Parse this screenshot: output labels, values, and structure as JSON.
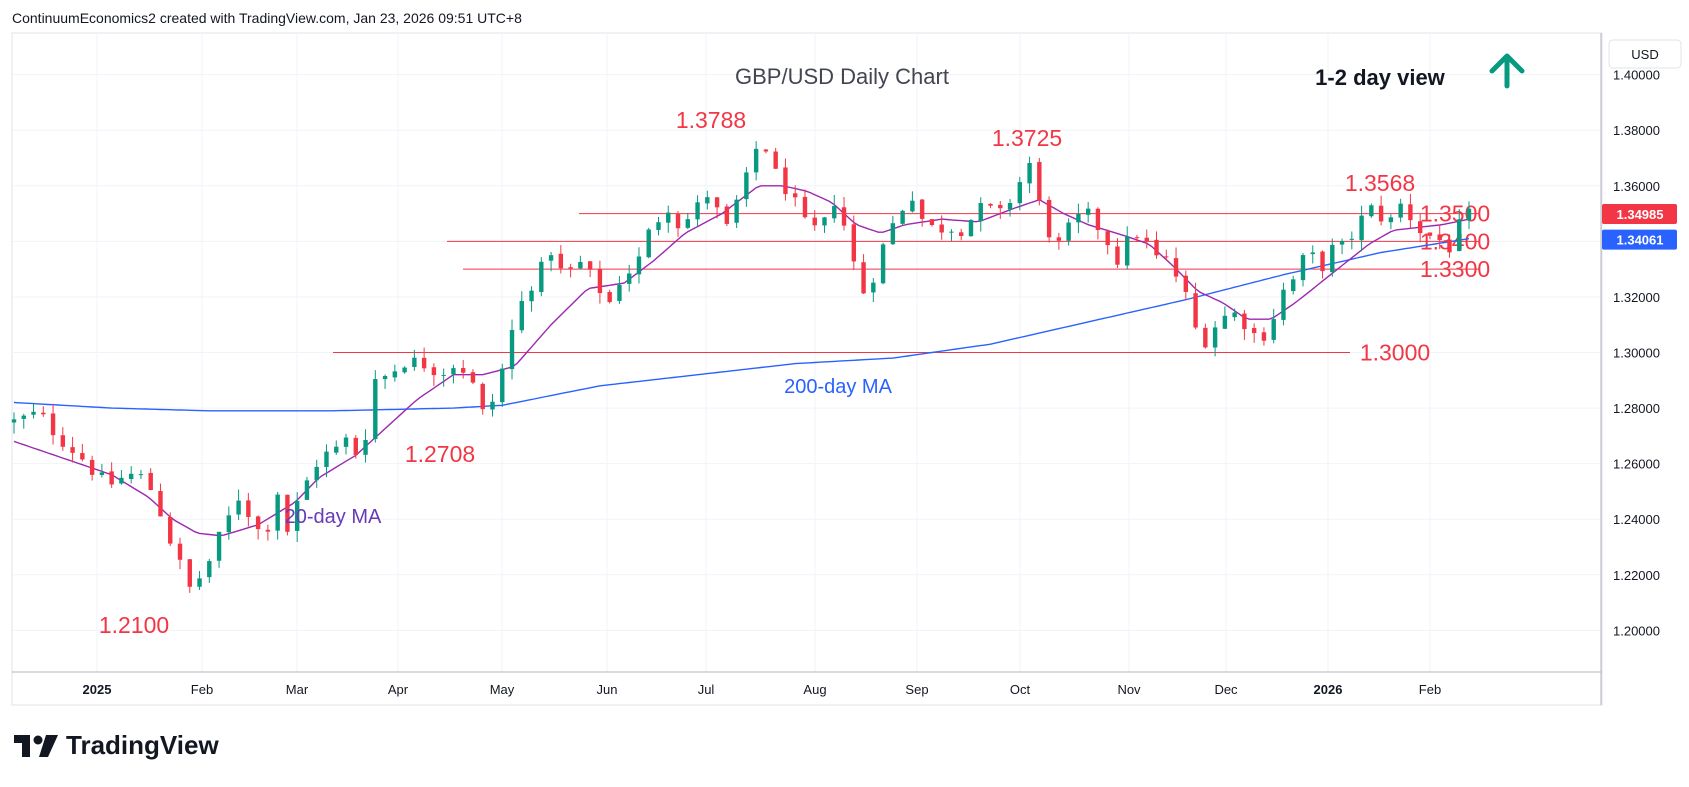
{
  "header": {
    "credit": "ContinuumEconomics2 created with TradingView.com, Jan 23, 2026 09:51 UTC+8"
  },
  "footer": {
    "brand": "TradingView"
  },
  "chart_data": {
    "type": "candlestick",
    "title": "GBP/USD Daily Chart",
    "view_label": "1-2 day view",
    "view_direction": "up",
    "currency": "USD",
    "ylim": [
      1.185,
      1.415
    ],
    "y_ticks": [
      "1.40000",
      "1.38000",
      "1.36000",
      "1.34000",
      "1.32000",
      "1.30000",
      "1.28000",
      "1.26000",
      "1.24000",
      "1.22000",
      "1.20000"
    ],
    "x_ticks": [
      "2025",
      "Feb",
      "Mar",
      "Apr",
      "May",
      "Jun",
      "Jul",
      "Aug",
      "Sep",
      "Oct",
      "Nov",
      "Dec",
      "2026",
      "Feb"
    ],
    "x_tick_bold": [
      true,
      false,
      false,
      false,
      false,
      false,
      false,
      false,
      false,
      false,
      false,
      false,
      true,
      false
    ],
    "price_tags": [
      {
        "label": "1.34985",
        "value": 1.34985,
        "color": "#f23645"
      },
      {
        "label": "1.34061",
        "value": 1.34061,
        "color": "#2962ff"
      }
    ],
    "levels": [
      {
        "label": "1.3500",
        "value": 1.35,
        "from": "May",
        "to": "Jan-2026-end"
      },
      {
        "label": "1.3400",
        "value": 1.34,
        "from": "Apr",
        "to": "Jan-2026-end"
      },
      {
        "label": "1.3300",
        "value": 1.33,
        "from": "Apr",
        "to": "Jan-2026-end"
      },
      {
        "label": "1.3000",
        "value": 1.3,
        "from": "Mar",
        "to": "Dec"
      }
    ],
    "annotations": [
      {
        "label": "1.3788",
        "value": 1.3788,
        "color": "#f23645"
      },
      {
        "label": "1.3725",
        "value": 1.3725,
        "color": "#f23645"
      },
      {
        "label": "1.3568",
        "value": 1.3568,
        "color": "#f23645"
      },
      {
        "label": "1.2708",
        "value": 1.2708,
        "color": "#f23645"
      },
      {
        "label": "1.2100",
        "value": 1.21,
        "color": "#f23645"
      },
      {
        "label": "200-day MA",
        "color": "#2962ff"
      },
      {
        "label": "20-day MA",
        "color": "#673ab7"
      }
    ],
    "anchors": [
      [
        0,
        1.275
      ],
      [
        10,
        1.278
      ],
      [
        18,
        1.27
      ],
      [
        28,
        1.262
      ],
      [
        38,
        1.252
      ],
      [
        47,
        1.256
      ],
      [
        52,
        1.255
      ],
      [
        57,
        1.25
      ],
      [
        65,
        1.23
      ],
      [
        72,
        1.215
      ],
      [
        78,
        1.221
      ],
      [
        84,
        1.233
      ],
      [
        92,
        1.248
      ],
      [
        98,
        1.24
      ],
      [
        102,
        1.232
      ],
      [
        108,
        1.25
      ],
      [
        112,
        1.236
      ],
      [
        118,
        1.25
      ],
      [
        125,
        1.262
      ],
      [
        132,
        1.265
      ],
      [
        138,
        1.27
      ],
      [
        142,
        1.258
      ],
      [
        147,
        1.29
      ],
      [
        153,
        1.292
      ],
      [
        160,
        1.297
      ],
      [
        168,
        1.296
      ],
      [
        175,
        1.293
      ],
      [
        182,
        1.297
      ],
      [
        188,
        1.288
      ],
      [
        192,
        1.278
      ],
      [
        195,
        1.28
      ],
      [
        199,
        1.29
      ],
      [
        203,
        1.305
      ],
      [
        210,
        1.323
      ],
      [
        215,
        1.328
      ],
      [
        220,
        1.337
      ],
      [
        225,
        1.327
      ],
      [
        232,
        1.332
      ],
      [
        238,
        1.325
      ],
      [
        244,
        1.318
      ],
      [
        249,
        1.328
      ],
      [
        255,
        1.331
      ],
      [
        261,
        1.345
      ],
      [
        268,
        1.353
      ],
      [
        273,
        1.345
      ],
      [
        279,
        1.351
      ],
      [
        284,
        1.357
      ],
      [
        289,
        1.349
      ],
      [
        293,
        1.343
      ],
      [
        296,
        1.354
      ],
      [
        300,
        1.362
      ],
      [
        303,
        1.372
      ],
      [
        307,
        1.3765
      ],
      [
        311,
        1.365
      ],
      [
        315,
        1.361
      ],
      [
        320,
        1.353
      ],
      [
        325,
        1.344
      ],
      [
        331,
        1.344
      ],
      [
        336,
        1.355
      ],
      [
        340,
        1.346
      ],
      [
        344,
        1.332
      ],
      [
        348,
        1.322
      ],
      [
        352,
        1.328
      ],
      [
        356,
        1.338
      ],
      [
        362,
        1.35
      ],
      [
        368,
        1.357
      ],
      [
        373,
        1.346
      ],
      [
        378,
        1.344
      ],
      [
        382,
        1.346
      ],
      [
        387,
        1.344
      ],
      [
        393,
        1.349
      ],
      [
        398,
        1.353
      ],
      [
        403,
        1.348
      ],
      [
        408,
        1.355
      ],
      [
        413,
        1.363
      ],
      [
        416,
        1.368
      ],
      [
        419,
        1.356
      ],
      [
        422,
        1.348
      ],
      [
        427,
        1.337
      ],
      [
        432,
        1.344
      ],
      [
        438,
        1.35
      ],
      [
        442,
        1.348
      ],
      [
        448,
        1.34
      ],
      [
        453,
        1.332
      ],
      [
        458,
        1.344
      ],
      [
        462,
        1.342
      ],
      [
        467,
        1.334
      ],
      [
        472,
        1.333
      ],
      [
        478,
        1.325
      ],
      [
        482,
        1.315
      ],
      [
        486,
        1.302
      ],
      [
        491,
        1.309
      ],
      [
        496,
        1.313
      ],
      [
        501,
        1.314
      ],
      [
        506,
        1.309
      ],
      [
        510,
        1.304
      ],
      [
        515,
        1.311
      ],
      [
        520,
        1.322
      ],
      [
        525,
        1.327
      ],
      [
        530,
        1.337
      ],
      [
        535,
        1.33
      ],
      [
        540,
        1.337
      ],
      [
        545,
        1.338
      ],
      [
        550,
        1.345
      ],
      [
        555,
        1.352
      ],
      [
        560,
        1.349
      ],
      [
        565,
        1.347
      ],
      [
        569,
        1.355
      ],
      [
        574,
        1.345
      ],
      [
        578,
        1.343
      ],
      [
        582,
        1.341
      ],
      [
        586,
        1.34
      ],
      [
        589,
        1.337
      ],
      [
        592,
        1.345
      ],
      [
        596,
        1.349
      ]
    ],
    "ma20": [
      [
        0,
        1.268
      ],
      [
        20,
        1.262
      ],
      [
        40,
        1.256
      ],
      [
        55,
        1.248
      ],
      [
        65,
        1.24
      ],
      [
        75,
        1.235
      ],
      [
        85,
        1.234
      ],
      [
        100,
        1.238
      ],
      [
        115,
        1.246
      ],
      [
        125,
        1.255
      ],
      [
        140,
        1.263
      ],
      [
        155,
        1.275
      ],
      [
        165,
        1.283
      ],
      [
        180,
        1.292
      ],
      [
        192,
        1.292
      ],
      [
        205,
        1.295
      ],
      [
        220,
        1.31
      ],
      [
        235,
        1.323
      ],
      [
        250,
        1.325
      ],
      [
        262,
        1.333
      ],
      [
        275,
        1.343
      ],
      [
        290,
        1.35
      ],
      [
        305,
        1.36
      ],
      [
        315,
        1.36
      ],
      [
        325,
        1.358
      ],
      [
        335,
        1.354
      ],
      [
        345,
        1.346
      ],
      [
        355,
        1.343
      ],
      [
        365,
        1.346
      ],
      [
        380,
        1.348
      ],
      [
        395,
        1.347
      ],
      [
        410,
        1.352
      ],
      [
        420,
        1.355
      ],
      [
        430,
        1.35
      ],
      [
        440,
        1.346
      ],
      [
        455,
        1.342
      ],
      [
        465,
        1.339
      ],
      [
        475,
        1.331
      ],
      [
        485,
        1.322
      ],
      [
        495,
        1.318
      ],
      [
        505,
        1.312
      ],
      [
        515,
        1.312
      ],
      [
        525,
        1.318
      ],
      [
        535,
        1.325
      ],
      [
        545,
        1.332
      ],
      [
        555,
        1.339
      ],
      [
        565,
        1.344
      ],
      [
        575,
        1.345
      ],
      [
        585,
        1.346
      ],
      [
        596,
        1.348
      ]
    ],
    "ma200": [
      [
        0,
        1.282
      ],
      [
        40,
        1.28
      ],
      [
        80,
        1.279
      ],
      [
        130,
        1.279
      ],
      [
        180,
        1.28
      ],
      [
        200,
        1.281
      ],
      [
        240,
        1.288
      ],
      [
        280,
        1.292
      ],
      [
        320,
        1.296
      ],
      [
        360,
        1.298
      ],
      [
        400,
        1.303
      ],
      [
        440,
        1.311
      ],
      [
        480,
        1.319
      ],
      [
        520,
        1.328
      ],
      [
        560,
        1.336
      ],
      [
        596,
        1.341
      ]
    ]
  }
}
